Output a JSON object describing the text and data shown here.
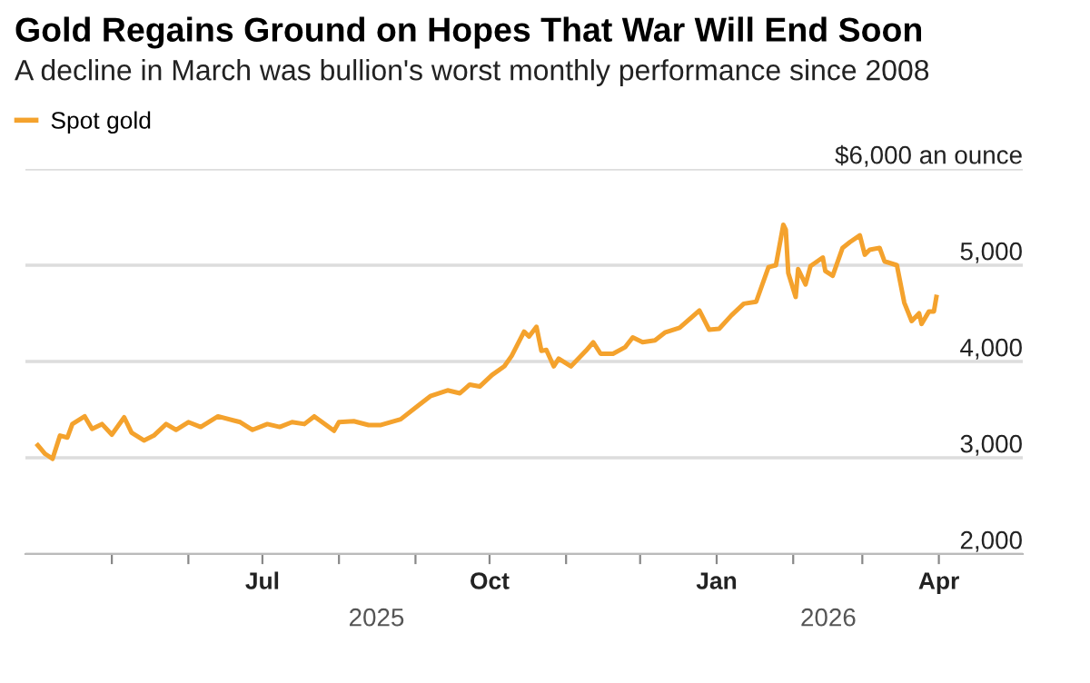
{
  "chart_data": {
    "type": "line",
    "title": "Gold Regains Ground on Hopes That War Will End Soon",
    "subtitle": "A decline in March was bullion's worst monthly performance since 2008",
    "x": [
      "2025-04-01",
      "2025-04-04",
      "2025-04-07",
      "2025-04-10",
      "2025-04-13",
      "2025-04-15",
      "2025-04-20",
      "2025-04-23",
      "2025-04-27",
      "2025-05-01",
      "2025-05-06",
      "2025-05-09",
      "2025-05-14",
      "2025-05-18",
      "2025-05-23",
      "2025-05-27",
      "2025-06-01",
      "2025-06-06",
      "2025-06-13",
      "2025-06-22",
      "2025-06-27",
      "2025-07-03",
      "2025-07-08",
      "2025-07-13",
      "2025-07-18",
      "2025-07-22",
      "2025-07-30",
      "2025-08-01",
      "2025-08-07",
      "2025-08-13",
      "2025-08-18",
      "2025-08-26",
      "2025-09-02",
      "2025-09-07",
      "2025-09-14",
      "2025-09-19",
      "2025-09-23",
      "2025-09-27",
      "2025-10-02",
      "2025-10-07",
      "2025-10-10",
      "2025-10-15",
      "2025-10-17",
      "2025-10-20",
      "2025-10-22",
      "2025-10-24",
      "2025-10-27",
      "2025-10-29",
      "2025-11-03",
      "2025-11-09",
      "2025-11-12",
      "2025-11-15",
      "2025-11-20",
      "2025-11-25",
      "2025-11-28",
      "2025-12-02",
      "2025-12-07",
      "2025-12-11",
      "2025-12-17",
      "2025-12-25",
      "2025-12-29",
      "2026-01-02",
      "2026-01-07",
      "2026-01-12",
      "2026-01-17",
      "2026-01-22",
      "2026-01-25",
      "2026-01-28",
      "2026-01-29",
      "2026-01-30",
      "2026-02-02",
      "2026-02-03",
      "2026-02-06",
      "2026-02-08",
      "2026-02-13",
      "2026-02-14",
      "2026-02-17",
      "2026-02-21",
      "2026-02-24",
      "2026-02-28",
      "2026-03-02",
      "2026-03-04",
      "2026-03-08",
      "2026-03-10",
      "2026-03-15",
      "2026-03-18",
      "2026-03-21",
      "2026-03-24",
      "2026-03-25",
      "2026-03-28",
      "2026-03-30",
      "2026-03-31"
    ],
    "series": [
      {
        "name": "Spot gold",
        "color": "#f4a22d",
        "values": [
          3130,
          3040,
          2990,
          3230,
          3210,
          3350,
          3430,
          3300,
          3350,
          3240,
          3420,
          3260,
          3180,
          3230,
          3350,
          3290,
          3370,
          3320,
          3430,
          3370,
          3290,
          3350,
          3320,
          3370,
          3350,
          3430,
          3280,
          3370,
          3380,
          3340,
          3340,
          3400,
          3540,
          3640,
          3700,
          3670,
          3760,
          3740,
          3860,
          3950,
          4060,
          4310,
          4260,
          4360,
          4110,
          4120,
          3950,
          4030,
          3950,
          4110,
          4200,
          4080,
          4080,
          4150,
          4250,
          4200,
          4220,
          4300,
          4350,
          4530,
          4330,
          4340,
          4480,
          4600,
          4620,
          4980,
          5000,
          5420,
          5370,
          4920,
          4670,
          4960,
          4800,
          4990,
          5080,
          4940,
          4890,
          5180,
          5240,
          5310,
          5110,
          5160,
          5180,
          5040,
          5000,
          4610,
          4420,
          4500,
          4390,
          4520,
          4520,
          4670
        ]
      }
    ],
    "ylim": [
      2000,
      6000
    ],
    "yticks": [
      {
        "value": 2000,
        "label": "2,000"
      },
      {
        "value": 3000,
        "label": "3,000"
      },
      {
        "value": 4000,
        "label": "4,000"
      },
      {
        "value": 5000,
        "label": "5,000"
      },
      {
        "value": 6000,
        "label": "$6,000 an ounce"
      }
    ],
    "xlim": [
      "2025-03-27",
      "2026-05-05"
    ],
    "xticks": [
      {
        "value": "2025-05-01",
        "label": null
      },
      {
        "value": "2025-06-01",
        "label": null
      },
      {
        "value": "2025-07-01",
        "label": "Jul"
      },
      {
        "value": "2025-08-01",
        "label": null
      },
      {
        "value": "2025-09-01",
        "label": null
      },
      {
        "value": "2025-10-01",
        "label": "Oct"
      },
      {
        "value": "2025-11-01",
        "label": null
      },
      {
        "value": "2025-12-01",
        "label": null
      },
      {
        "value": "2026-01-01",
        "label": "Jan"
      },
      {
        "value": "2026-02-01",
        "label": null
      },
      {
        "value": "2026-03-01",
        "label": null
      },
      {
        "value": "2026-04-01",
        "label": "Apr"
      }
    ],
    "annotations": [
      "2025",
      "2026"
    ],
    "grid": "y",
    "legend": "top left"
  }
}
